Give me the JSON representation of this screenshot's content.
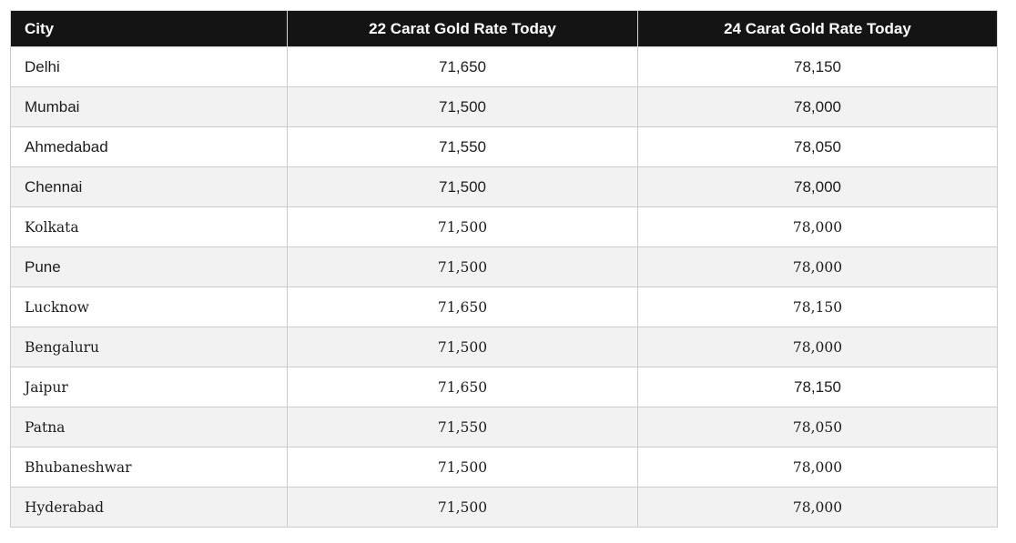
{
  "colors": {
    "header_bg": "#141414",
    "header_text": "#ffffff",
    "alt_row_bg": "#f2f2f2",
    "row_bg": "#ffffff",
    "border": "#cccccc",
    "text": "#1d1d1d",
    "page_bg": "#ffffff"
  },
  "chart_data": {
    "type": "table",
    "columns": [
      "City",
      "22 Carat Gold Rate Today",
      "24 Carat Gold Rate Today"
    ],
    "rows": [
      {
        "cells": [
          "Delhi",
          "71,650",
          "78,150"
        ],
        "text_styles": [
          "sans",
          "sans",
          "sans"
        ]
      },
      {
        "cells": [
          "Mumbai",
          "71,500",
          "78,000"
        ],
        "text_styles": [
          "sans",
          "sans",
          "sans"
        ]
      },
      {
        "cells": [
          "Ahmedabad",
          "71,550",
          "78,050"
        ],
        "text_styles": [
          "sans",
          "sans",
          "sans"
        ]
      },
      {
        "cells": [
          "Chennai",
          "71,500",
          "78,000"
        ],
        "text_styles": [
          "sans",
          "sans",
          "sans"
        ]
      },
      {
        "cells": [
          "Kolkata",
          "71,500",
          "78,000"
        ],
        "text_styles": [
          "serif",
          "serif",
          "serif"
        ]
      },
      {
        "cells": [
          "Pune",
          "71,500",
          "78,000"
        ],
        "text_styles": [
          "sans",
          "serif",
          "serif"
        ]
      },
      {
        "cells": [
          "Lucknow",
          "71,650",
          "78,150"
        ],
        "text_styles": [
          "serif",
          "serif",
          "serif"
        ]
      },
      {
        "cells": [
          "Bengaluru",
          "71,500",
          "78,000"
        ],
        "text_styles": [
          "serif",
          "serif",
          "serif"
        ]
      },
      {
        "cells": [
          "Jaipur",
          "71,650",
          "78,150"
        ],
        "text_styles": [
          "serif",
          "serif",
          "sans"
        ]
      },
      {
        "cells": [
          "Patna",
          "71,550",
          "78,050"
        ],
        "text_styles": [
          "serif",
          "serif",
          "serif"
        ]
      },
      {
        "cells": [
          "Bhubaneshwar",
          "71,500",
          "78,000"
        ],
        "text_styles": [
          "serif",
          "serif",
          "serif"
        ]
      },
      {
        "cells": [
          "Hyderabad",
          "71,500",
          "78,000"
        ],
        "text_styles": [
          "serif",
          "serif",
          "serif"
        ]
      }
    ]
  }
}
